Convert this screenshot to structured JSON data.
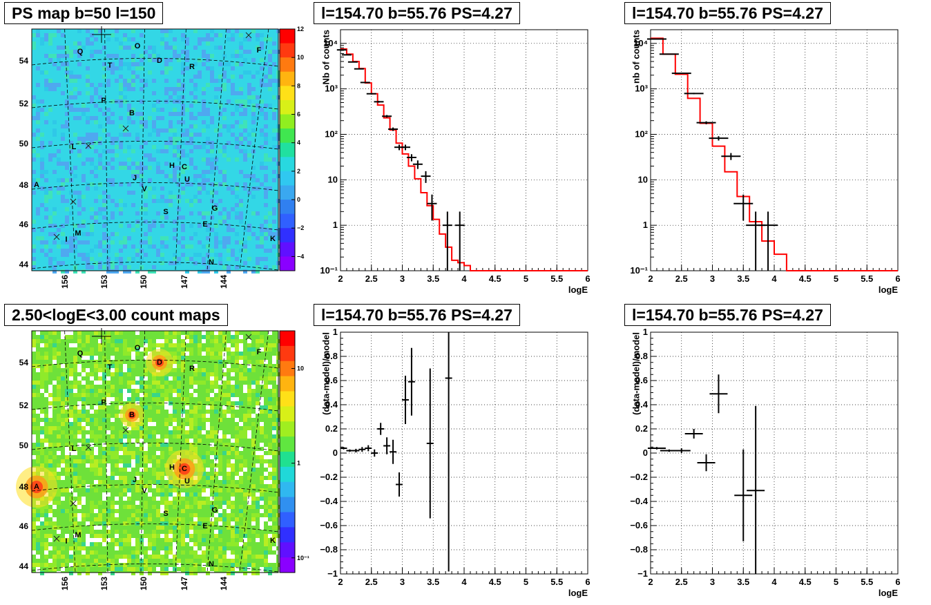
{
  "panels": {
    "map_top_title": "PS map b=50 l=150",
    "map_bottom_title": "2.50<logE<3.00 count maps",
    "plot_title": "l=154.70 b=55.76 PS=4.27"
  },
  "maps": {
    "top": {
      "colorbar_ticks": [
        "12",
        "10",
        "8",
        "6",
        "4",
        "2",
        "0",
        "−2",
        "−4"
      ],
      "colorbar_values": [
        12,
        10,
        8,
        6,
        4,
        2,
        0,
        -2,
        -4
      ],
      "colorbar_range": [
        -5,
        12
      ]
    },
    "bottom": {
      "colorbar_ticks": [
        "10",
        "1",
        "10⁻¹"
      ],
      "colorbar_values": [
        10,
        1,
        0.1
      ],
      "colorbar_range": [
        0.07,
        25
      ]
    },
    "lat_ticks": [
      "54",
      "52",
      "50",
      "48",
      "46",
      "44"
    ],
    "lon_ticks": [
      "156",
      "153",
      "150",
      "147",
      "144"
    ],
    "sources": [
      "Q",
      "O",
      "D",
      "T",
      "R",
      "F",
      "P",
      "B",
      "L",
      "H",
      "C",
      "U",
      "J",
      "V",
      "A",
      "G",
      "S",
      "E",
      "M",
      "I",
      "K",
      "N"
    ],
    "colors": {
      "top_background": "#33d7e6",
      "bottom_background": "#6ee13a",
      "hotspot": "#ff3a18"
    }
  },
  "chart_data": [
    {
      "type": "line",
      "panel": "top-middle",
      "title": "l=154.70 b=55.76 PS=4.27",
      "xlabel": "logE",
      "ylabel": "Nb of counts",
      "xlim": [
        2,
        6
      ],
      "ylim": [
        0.1,
        20000
      ],
      "yscale": "log",
      "grid": true,
      "x_ticks": [
        "2",
        "2.5",
        "3",
        "3.5",
        "4",
        "4.5",
        "5",
        "5.5",
        "6"
      ],
      "y_ticks": [
        "10⁴",
        "10³",
        "10²",
        "10",
        "1",
        "10⁻¹"
      ],
      "model_edges": [
        2.0,
        2.1,
        2.2,
        2.3,
        2.4,
        2.5,
        2.6,
        2.7,
        2.8,
        2.9,
        3.0,
        3.1,
        3.2,
        3.3,
        3.4,
        3.5,
        3.6,
        3.7,
        3.8,
        3.9,
        4.0,
        4.1,
        6.0
      ],
      "model_values": [
        7500,
        5800,
        4000,
        2800,
        1350,
        780,
        440,
        230,
        125,
        64,
        37,
        20,
        10.5,
        5.2,
        2.7,
        1.35,
        0.64,
        0.33,
        0.17,
        0.15,
        0.13,
        0.1
      ],
      "model_color": "#ff0000",
      "data": [
        {
          "x": 2.02,
          "y": 7200
        },
        {
          "x": 2.1,
          "y": 5600
        },
        {
          "x": 2.2,
          "y": 3900
        },
        {
          "x": 2.3,
          "y": 2750
        },
        {
          "x": 2.4,
          "y": 1380
        },
        {
          "x": 2.5,
          "y": 780
        },
        {
          "x": 2.62,
          "y": 520
        },
        {
          "x": 2.75,
          "y": 250
        },
        {
          "x": 2.85,
          "y": 130
        },
        {
          "x": 2.95,
          "y": 52
        },
        {
          "x": 3.05,
          "y": 52
        },
        {
          "x": 3.15,
          "y": 31
        },
        {
          "x": 3.25,
          "y": 22
        },
        {
          "x": 3.38,
          "y": 12
        },
        {
          "x": 3.48,
          "y": 3
        },
        {
          "x": 3.73,
          "y": 1
        },
        {
          "x": 3.93,
          "y": 1
        }
      ]
    },
    {
      "type": "line",
      "panel": "top-right",
      "title": "l=154.70 b=55.76 PS=4.27",
      "xlabel": "logE",
      "ylabel": "nb of counts",
      "xlim": [
        2,
        6
      ],
      "ylim": [
        0.1,
        20000
      ],
      "yscale": "log",
      "grid": true,
      "x_ticks": [
        "2",
        "2.5",
        "3",
        "3.5",
        "4",
        "4.5",
        "5",
        "5.5",
        "6"
      ],
      "y_ticks": [
        "10⁴",
        "10³",
        "10²",
        "10",
        "1",
        "10⁻¹"
      ],
      "model_edges": [
        2.0,
        2.2,
        2.4,
        2.6,
        2.8,
        3.0,
        3.2,
        3.4,
        3.6,
        3.8,
        4.0,
        4.2,
        6.0
      ],
      "model_values": [
        13000,
        5800,
        2100,
        620,
        175,
        55,
        15,
        4.3,
        1.2,
        0.45,
        0.23,
        0.1
      ],
      "model_color": "#ff0000",
      "data": [
        {
          "x": 2.1,
          "y": 12500
        },
        {
          "x": 2.3,
          "y": 5800
        },
        {
          "x": 2.5,
          "y": 2200
        },
        {
          "x": 2.7,
          "y": 790
        },
        {
          "x": 2.9,
          "y": 180
        },
        {
          "x": 3.1,
          "y": 82
        },
        {
          "x": 3.3,
          "y": 33
        },
        {
          "x": 3.5,
          "y": 3
        },
        {
          "x": 3.7,
          "y": 1
        },
        {
          "x": 3.9,
          "y": 1
        }
      ]
    },
    {
      "type": "scatter",
      "panel": "bottom-middle",
      "title": "l=154.70 b=55.76 PS=4.27",
      "xlabel": "logE",
      "ylabel": "(data-model)/model",
      "xlim": [
        2,
        6
      ],
      "ylim": [
        -1,
        1
      ],
      "grid": true,
      "x_ticks": [
        "2",
        "2.5",
        "3",
        "3.5",
        "4",
        "4.5",
        "5",
        "5.5",
        "6"
      ],
      "y_ticks": [
        "1",
        "0.8",
        "0.6",
        "0.4",
        "0.2",
        "0",
        "−0.2",
        "−0.4",
        "−0.6",
        "−0.8",
        "−1"
      ],
      "data": [
        {
          "x": 2.05,
          "y": 0.04,
          "err": 0.01
        },
        {
          "x": 2.15,
          "y": 0.02,
          "err": 0.01
        },
        {
          "x": 2.25,
          "y": 0.02,
          "err": 0.015
        },
        {
          "x": 2.35,
          "y": 0.03,
          "err": 0.02
        },
        {
          "x": 2.45,
          "y": 0.04,
          "err": 0.025
        },
        {
          "x": 2.55,
          "y": 0.0,
          "err": 0.03
        },
        {
          "x": 2.65,
          "y": 0.2,
          "err": 0.05
        },
        {
          "x": 2.75,
          "y": 0.06,
          "err": 0.07
        },
        {
          "x": 2.85,
          "y": 0.01,
          "err": 0.1
        },
        {
          "x": 2.95,
          "y": -0.26,
          "err": 0.1
        },
        {
          "x": 3.05,
          "y": 0.44,
          "err": 0.2
        },
        {
          "x": 3.15,
          "y": 0.59,
          "err": 0.28
        },
        {
          "x": 3.45,
          "y": 0.08,
          "err": 0.62
        },
        {
          "x": 3.75,
          "y": 0.62,
          "err": 1.6
        }
      ]
    },
    {
      "type": "scatter",
      "panel": "bottom-right",
      "title": "l=154.70 b=55.76 PS=4.27",
      "xlabel": "logE",
      "ylabel": "(data-model)/model",
      "xlim": [
        2,
        6
      ],
      "ylim": [
        -1,
        1
      ],
      "grid": true,
      "x_ticks": [
        "2",
        "2.5",
        "3",
        "3.5",
        "4",
        "4.5",
        "5",
        "5.5",
        "6"
      ],
      "y_ticks": [
        "1",
        "0.8",
        "0.6",
        "0.4",
        "0.2",
        "0",
        "−0.2",
        "−0.4",
        "−0.6",
        "−0.8",
        "−1"
      ],
      "data": [
        {
          "x": 2.1,
          "y": 0.04,
          "err": 0.01
        },
        {
          "x": 2.3,
          "y": 0.02,
          "err": 0.01
        },
        {
          "x": 2.5,
          "y": 0.02,
          "err": 0.02
        },
        {
          "x": 2.7,
          "y": 0.16,
          "err": 0.04
        },
        {
          "x": 2.9,
          "y": -0.08,
          "err": 0.07
        },
        {
          "x": 3.1,
          "y": 0.49,
          "err": 0.16
        },
        {
          "x": 3.5,
          "y": -0.35,
          "err": 0.38
        },
        {
          "x": 3.7,
          "y": -0.31,
          "err": 0.7
        }
      ]
    }
  ]
}
